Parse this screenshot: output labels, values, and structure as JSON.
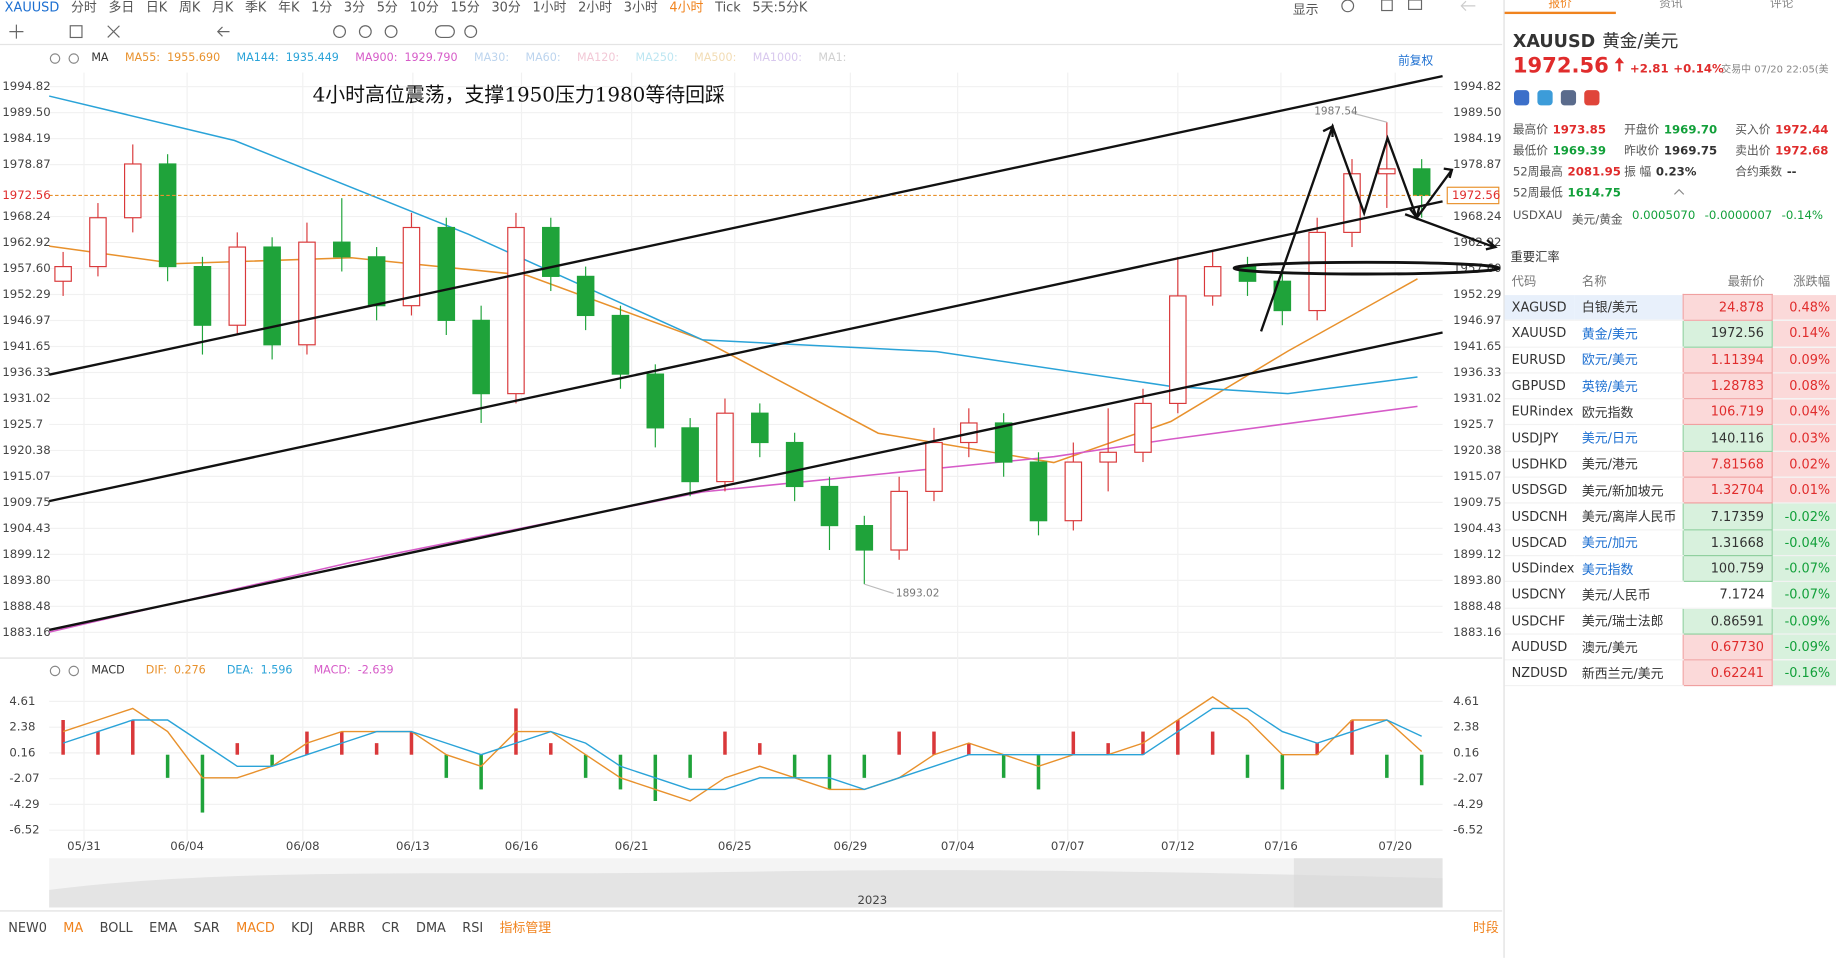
{
  "toolbar": {
    "symbol": "XAUUSD",
    "periods": [
      "分时",
      "多日",
      "日K",
      "周K",
      "月K",
      "季K",
      "年K",
      "1分",
      "3分",
      "5分",
      "10分",
      "15分",
      "30分",
      "1小时",
      "2小时",
      "3小时",
      "4小时",
      "Tick",
      "5天:5分K"
    ],
    "active_index": 16,
    "display": "显示"
  },
  "chart_data": {
    "type": "candlestick",
    "annotation": "4小时高位震荡，支撑1950压力1980等待回踩",
    "adjust": "前复权",
    "ma_title": "MA",
    "ma_legend": [
      {
        "label": "MA55:",
        "value": "1955.690",
        "color": "#e8912c"
      },
      {
        "label": "MA144:",
        "value": "1935.449",
        "color": "#2aa3d8"
      },
      {
        "label": "MA900:",
        "value": "1929.790",
        "color": "#d65bc8"
      },
      {
        "label": "MA30:",
        "color": "#bcd4ee"
      },
      {
        "label": "MA60:",
        "color": "#bcd4ee"
      },
      {
        "label": "MA120:",
        "color": "#f2c8d6"
      },
      {
        "label": "MA250:",
        "color": "#bde6f2"
      },
      {
        "label": "MA500:",
        "color": "#f2dcb4"
      },
      {
        "label": "MA1000:",
        "color": "#d8c8ee"
      },
      {
        "label": "MA1:",
        "color": "#d0d0d0"
      }
    ],
    "up_color": "#d9383a",
    "down_color": "#1fa33a",
    "x": [
      1,
      3.5,
      6,
      8.5,
      11,
      13.5,
      16,
      18.5,
      21,
      23.5,
      26,
      28.5,
      31,
      33.5,
      36,
      38.5,
      41,
      43.5,
      46,
      48.5,
      51,
      53.5,
      56,
      58.5,
      61,
      63.5,
      66,
      68.5,
      71,
      73.5,
      76,
      78.5,
      81,
      83.5,
      86,
      88.5,
      91,
      93.5,
      96,
      98.5
    ],
    "open": [
      1955,
      1958,
      1968,
      1979,
      1958,
      1946,
      1962,
      1942,
      1963,
      1960,
      1950,
      1966,
      1947,
      1932,
      1966,
      1956,
      1948,
      1936,
      1925,
      1914,
      1928,
      1922,
      1913,
      1905,
      1900,
      1912,
      1922,
      1926,
      1918,
      1906,
      1918,
      1920,
      1930,
      1952,
      1958,
      1955,
      1949,
      1965,
      1977,
      1978
    ],
    "high": [
      1961,
      1971,
      1983,
      1981,
      1960,
      1965,
      1964,
      1967,
      1972,
      1962,
      1969,
      1968,
      1950,
      1969,
      1968,
      1958,
      1950,
      1938,
      1927,
      1931,
      1930,
      1924,
      1915,
      1907,
      1915,
      1925,
      1929,
      1928,
      1920,
      1922,
      1929,
      1933,
      1960,
      1961,
      1960,
      1957,
      1968,
      1980,
      1987.54,
      1980
    ],
    "low": [
      1952,
      1956,
      1965,
      1955,
      1940,
      1944,
      1939,
      1940,
      1957,
      1947,
      1948,
      1944,
      1926,
      1930,
      1953,
      1945,
      1933,
      1921,
      1911,
      1912,
      1919,
      1910,
      1900,
      1893.02,
      1898,
      1910,
      1919,
      1915,
      1903,
      1904,
      1912,
      1918,
      1928,
      1950,
      1952,
      1946,
      1947,
      1962,
      1970,
      1968
    ],
    "close": [
      1958,
      1968,
      1979,
      1958,
      1946,
      1962,
      1942,
      1963,
      1960,
      1950,
      1966,
      1947,
      1932,
      1966,
      1956,
      1948,
      1936,
      1925,
      1914,
      1928,
      1922,
      1913,
      1905,
      1900,
      1912,
      1922,
      1926,
      1918,
      1906,
      1918,
      1920,
      1930,
      1952,
      1958,
      1955,
      1949,
      1965,
      1977,
      1978,
      1972.56
    ],
    "ma": [
      {
        "color": "#e8912c",
        "x": [
          0,
          9.1,
          21.7,
          34.3,
          46.9,
          59.5,
          72.1,
          80.5,
          88.9,
          98.2
        ],
        "values": [
          1962.2,
          1958.6,
          1959.8,
          1956.2,
          1943.0,
          1923.9,
          1917.9,
          1926.3,
          1940.7,
          1955.5
        ]
      },
      {
        "color": "#2aa3d8",
        "x": [
          0,
          13.3,
          30.1,
          46.9,
          63.7,
          80.5,
          88.9,
          98.2
        ],
        "values": [
          1992.9,
          1983.8,
          1964.6,
          1943.0,
          1940.6,
          1933.5,
          1932.0,
          1935.4
        ]
      },
      {
        "color": "#d65bc8",
        "x": [
          0,
          21.7,
          46.9,
          72.1,
          80.5,
          98.2
        ],
        "values": [
          1883.2,
          1897.5,
          1911.9,
          1919.1,
          1922.7,
          1929.4
        ]
      }
    ],
    "current_price": 1972.56,
    "current_color": "#e8912c",
    "xlim": [
      0,
      100
    ],
    "ylim": [
      1878.37,
      1997.7
    ],
    "yticks": [
      1994.82,
      {
        "value": 1989.5,
        "label": "1989.50"
      },
      1984.19,
      1978.87,
      1968.24,
      1962.92,
      {
        "value": 1957.6,
        "label": "1957.60"
      },
      1952.29,
      1946.97,
      1941.65,
      1936.33,
      1931.02,
      1925.7,
      1920.38,
      1915.07,
      1909.75,
      1904.43,
      1899.12,
      {
        "value": 1893.8,
        "label": "1893.80"
      },
      1888.48,
      1883.16
    ],
    "xticks": [
      {
        "value": 2.5,
        "label": "05/31"
      },
      {
        "value": 9.9,
        "label": "06/04"
      },
      {
        "value": 18.2,
        "label": "06/08"
      },
      {
        "value": 26.1,
        "label": "06/13"
      },
      {
        "value": 33.9,
        "label": "06/16"
      },
      {
        "value": 41.8,
        "label": "06/21"
      },
      {
        "value": 49.2,
        "label": "06/25"
      },
      {
        "value": 57.5,
        "label": "06/29"
      },
      {
        "value": 65.2,
        "label": "07/04"
      },
      {
        "value": 73.1,
        "label": "07/07"
      },
      {
        "value": 81.0,
        "label": "07/12"
      },
      {
        "value": 88.4,
        "label": "07/16"
      },
      {
        "value": 96.6,
        "label": "07/20"
      }
    ],
    "macd": {
      "title": "MACD",
      "legend": [
        {
          "label": "DIF:",
          "value": "0.276",
          "color": "#e8912c"
        },
        {
          "label": "DEA:",
          "value": "1.596",
          "color": "#2aa3d8"
        },
        {
          "label": "MACD:",
          "value": "-2.639",
          "color": "#d65bc8"
        }
      ],
      "hist": [
        3,
        2,
        3,
        -2,
        -5,
        1,
        -1,
        2,
        2,
        1,
        2,
        -2,
        -3,
        4,
        1,
        -2,
        -3,
        -4,
        -2,
        2,
        1,
        -2,
        -3,
        -2,
        2,
        2,
        1,
        -2,
        -3,
        2,
        1,
        2,
        3,
        2,
        -2,
        -3,
        1,
        3,
        -2,
        -2.639
      ],
      "dif": [
        2,
        3,
        4,
        2,
        -2,
        -2,
        -1,
        1,
        2,
        2,
        2,
        0,
        -1,
        2,
        2,
        0,
        -2,
        -3,
        -4,
        -2,
        -1,
        -2,
        -3,
        -3,
        -2,
        0,
        1,
        0,
        -1,
        0,
        0,
        1,
        3,
        5,
        3,
        0,
        0,
        3,
        3,
        0.276
      ],
      "dea": [
        1,
        2,
        3,
        3,
        1,
        -1,
        -1,
        0,
        1,
        2,
        2,
        1,
        0,
        1,
        2,
        1,
        -1,
        -2,
        -3,
        -3,
        -2,
        -2,
        -2,
        -3,
        -2,
        -1,
        0,
        0,
        0,
        0,
        0,
        0,
        2,
        4,
        4,
        2,
        1,
        2,
        3,
        1.596
      ],
      "ylim": [
        -7.13,
        5.52
      ],
      "yticks": [
        4.61,
        2.38,
        0.16,
        -2.07,
        -4.29,
        -6.52
      ]
    },
    "navigator_year": "2023"
  },
  "indicators": {
    "items": [
      "NEW0",
      "MA",
      "BOLL",
      "EMA",
      "SAR",
      "MACD",
      "KDJ",
      "ARBR",
      "CR",
      "DMA",
      "RSI",
      "指标管理"
    ],
    "active": [
      1,
      5,
      11
    ],
    "right": "时段"
  },
  "quote": {
    "tabs": [
      "报价",
      "资讯",
      "评论"
    ],
    "code": "XAUUSD",
    "name": "黄金/美元",
    "price": "1972.56",
    "change": "+2.81",
    "change_pct": "+0.14%",
    "status": "交易中 07/20 22:05(美",
    "stats": [
      {
        "label": "最高价",
        "value": "1973.85",
        "tone": "up"
      },
      {
        "label": "开盘价",
        "value": "1969.70",
        "tone": "down"
      },
      {
        "label": "买入价",
        "value": "1972.44",
        "tone": "up"
      },
      {
        "label": "最低价",
        "value": "1969.39",
        "tone": "down"
      },
      {
        "label": "昨收价",
        "value": "1969.75",
        "tone": "flat"
      },
      {
        "label": "卖出价",
        "value": "1972.68",
        "tone": "up"
      },
      {
        "label": "52周最高",
        "value": "2081.95",
        "tone": "up"
      },
      {
        "label": "振 幅",
        "value": "0.23%",
        "tone": "flat"
      },
      {
        "label": "合约乘数",
        "value": "--",
        "tone": "flat"
      },
      {
        "label": "52周最低",
        "value": "1614.75",
        "tone": "down"
      }
    ],
    "cross": {
      "code": "USDXAU",
      "name": "美元/黄金",
      "price": "0.0005070",
      "change": "-0.0000007",
      "change_pct": "-0.14%"
    }
  },
  "rates": {
    "title": "重要汇率",
    "columns": [
      "代码",
      "名称",
      "最新价",
      "涨跌幅"
    ],
    "rows": [
      {
        "code": "XAGUSD",
        "name": "白银/美元",
        "price": "24.878",
        "change": "0.48%",
        "up": true,
        "link": false
      },
      {
        "code": "XAUUSD",
        "name": "黄金/美元",
        "price": "1972.56",
        "change": "0.14%",
        "up": false,
        "link": true
      },
      {
        "code": "EURUSD",
        "name": "欧元/美元",
        "price": "1.11394",
        "change": "0.09%",
        "up": true,
        "link": true
      },
      {
        "code": "GBPUSD",
        "name": "英镑/美元",
        "price": "1.28783",
        "change": "0.08%",
        "up": true,
        "link": true
      },
      {
        "code": "EURindex",
        "name": "欧元指数",
        "price": "106.719",
        "change": "0.04%",
        "up": true,
        "link": false
      },
      {
        "code": "USDJPY",
        "name": "美元/日元",
        "price": "140.116",
        "change": "0.03%",
        "up": false,
        "link": true
      },
      {
        "code": "USDHKD",
        "name": "美元/港元",
        "price": "7.81568",
        "change": "0.02%",
        "up": true,
        "link": false
      },
      {
        "code": "USDSGD",
        "name": "美元/新加坡元",
        "price": "1.32704",
        "change": "0.01%",
        "up": true,
        "link": false
      },
      {
        "code": "USDCNH",
        "name": "美元/离岸人民币",
        "price": "7.17359",
        "change": "-0.02%",
        "up": false,
        "link": false
      },
      {
        "code": "USDCAD",
        "name": "美元/加元",
        "price": "1.31668",
        "change": "-0.04%",
        "up": false,
        "link": true
      },
      {
        "code": "USDindex",
        "name": "美元指数",
        "price": "100.759",
        "change": "-0.07%",
        "up": false,
        "link": true
      },
      {
        "code": "USDCNY",
        "name": "美元/人民币",
        "price": "7.1724",
        "change": "-0.07%",
        "up": null,
        "link": false
      },
      {
        "code": "USDCHF",
        "name": "美元/瑞士法郎",
        "price": "0.86591",
        "change": "-0.09%",
        "up": false,
        "link": false
      },
      {
        "code": "AUDUSD",
        "name": "澳元/美元",
        "price": "0.67730",
        "change": "-0.09%",
        "up": true,
        "link": false
      },
      {
        "code": "NZDUSD",
        "name": "新西兰元/美元",
        "price": "0.62241",
        "change": "-0.16%",
        "up": true,
        "link": false
      }
    ]
  }
}
